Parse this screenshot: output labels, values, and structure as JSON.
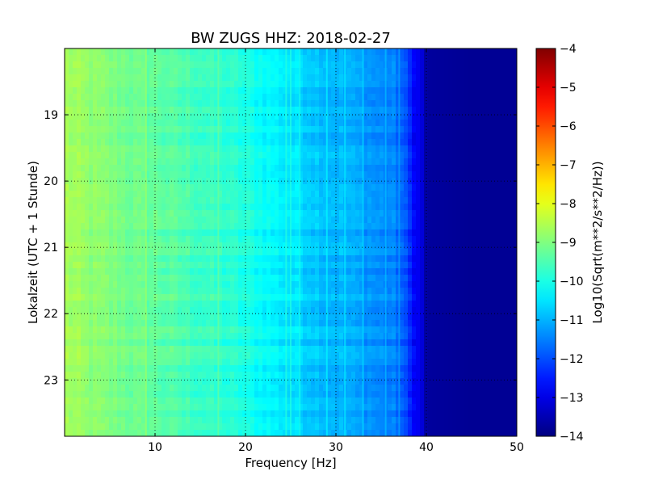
{
  "chart_data": {
    "type": "heatmap",
    "title": "BW ZUGS HHZ: 2018-02-27",
    "xlabel": "Frequency [Hz]",
    "ylabel": "Lokalzeit (UTC + 1 Stunde)",
    "xlim": [
      0,
      50
    ],
    "ylim": [
      18.0,
      23.85
    ],
    "y_inverted": true,
    "grid": true,
    "x_ticks": [
      10,
      20,
      30,
      40,
      50
    ],
    "y_ticks": [
      19,
      20,
      21,
      22,
      23
    ],
    "colormap": "jet",
    "colorbar": {
      "label": "Log10(Sqrt(m**2/s**2/Hz))",
      "min": -14,
      "max": -4,
      "ticks": [
        -4,
        -5,
        -6,
        -7,
        -8,
        -9,
        -10,
        -11,
        -12,
        -13,
        -14
      ]
    },
    "spectrum_profile": {
      "frequency_hz": [
        0,
        2,
        5,
        8,
        10,
        13,
        16,
        19,
        21,
        23,
        25,
        27,
        29,
        31,
        33,
        35,
        36.5,
        37.5,
        38.5,
        39.5,
        40,
        45,
        50
      ],
      "log10_amplitude": [
        -8.6,
        -8.8,
        -9.0,
        -9.2,
        -9.3,
        -9.5,
        -9.7,
        -9.9,
        -10.1,
        -10.3,
        -10.5,
        -10.7,
        -10.9,
        -11.0,
        -11.2,
        -11.4,
        -11.5,
        -11.9,
        -12.6,
        -13.1,
        -13.7,
        -13.8,
        -13.8
      ]
    },
    "spectral_lines_hz": [
      9,
      17,
      24.5,
      25,
      26,
      29,
      31,
      33,
      35.5,
      37
    ]
  }
}
